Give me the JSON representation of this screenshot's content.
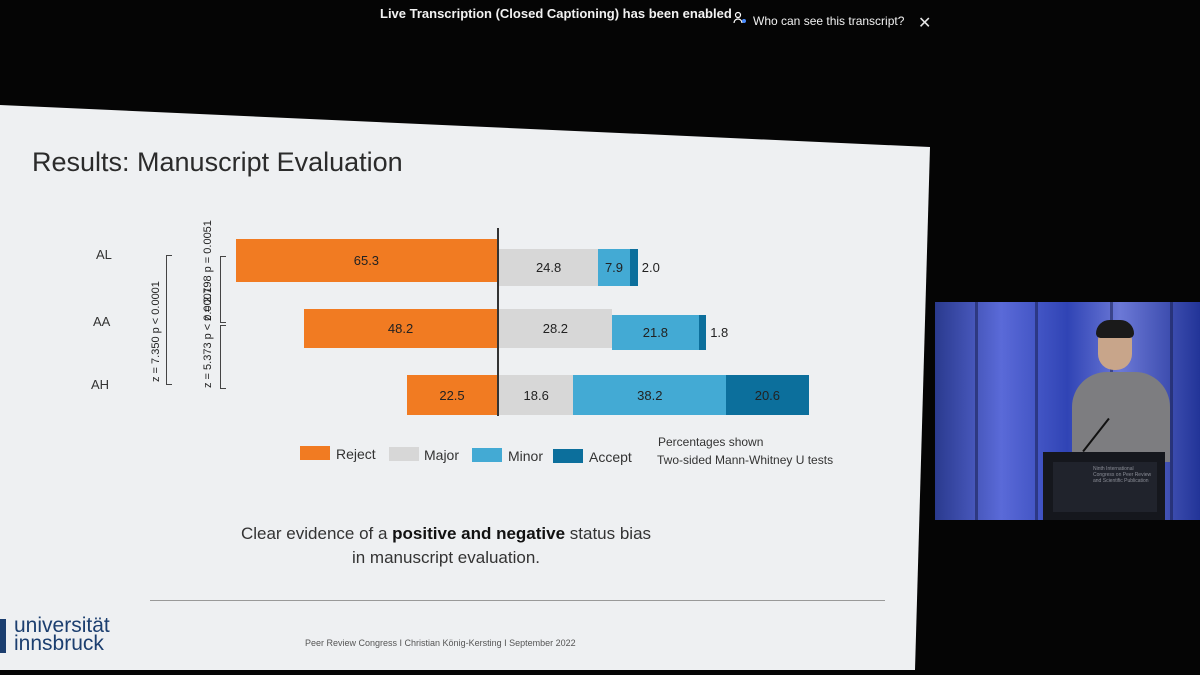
{
  "caption_bar": {
    "status_text": "Live Transcription (Closed Captioning) has been enabled",
    "link_text": "Who can see this transcript?",
    "link_icon": "people-icon",
    "close_icon": "close-icon"
  },
  "slide": {
    "title": "Results: Manuscript Evaluation",
    "categories": [
      "AL",
      "AA",
      "AH"
    ],
    "stats": {
      "outer": "z = 7.350  p < 0.0001",
      "upper": "z = 2.798   p = 0.0051",
      "lower": "z = 5.373   p < 0.0001"
    },
    "legend": [
      "Reject",
      "Major",
      "Minor",
      "Accept"
    ],
    "notes": [
      "Percentages shown",
      "Two-sided Mann-Whitney U tests"
    ],
    "conclusion": {
      "part1": "Clear evidence of a ",
      "bold": "positive and negative",
      "part2": " status bias",
      "line2": "in manuscript evaluation."
    },
    "footer": "Peer Review Congress I Christian König-Kersting I September 2022",
    "logo": {
      "line1": "universität",
      "line2": "innsbruck"
    }
  },
  "chart_data": {
    "type": "bar",
    "orientation": "horizontal-diverging",
    "categories": [
      "AL",
      "AA",
      "AH"
    ],
    "series": [
      {
        "name": "Reject",
        "values": [
          65.3,
          48.2,
          22.5
        ],
        "color": "#f17b22"
      },
      {
        "name": "Major",
        "values": [
          24.8,
          28.2,
          18.6
        ],
        "color": "#d7d7d7"
      },
      {
        "name": "Minor",
        "values": [
          7.9,
          21.8,
          38.2
        ],
        "color": "#43aad4"
      },
      {
        "name": "Accept",
        "values": [
          2.0,
          1.8,
          20.6
        ],
        "color": "#0c6f9c"
      }
    ],
    "value_labels": {
      "AL": [
        "65.3",
        "24.8",
        "7.9",
        "2.0"
      ],
      "AA": [
        "48.2",
        "28.2",
        "21.8",
        "1.8"
      ],
      "AH": [
        "22.5",
        "18.6",
        "38.2",
        "20.6"
      ]
    },
    "legend_position": "bottom"
  },
  "video": {
    "podium_text": "Ninth International Congress on Peer Review and Scientific Publication"
  }
}
